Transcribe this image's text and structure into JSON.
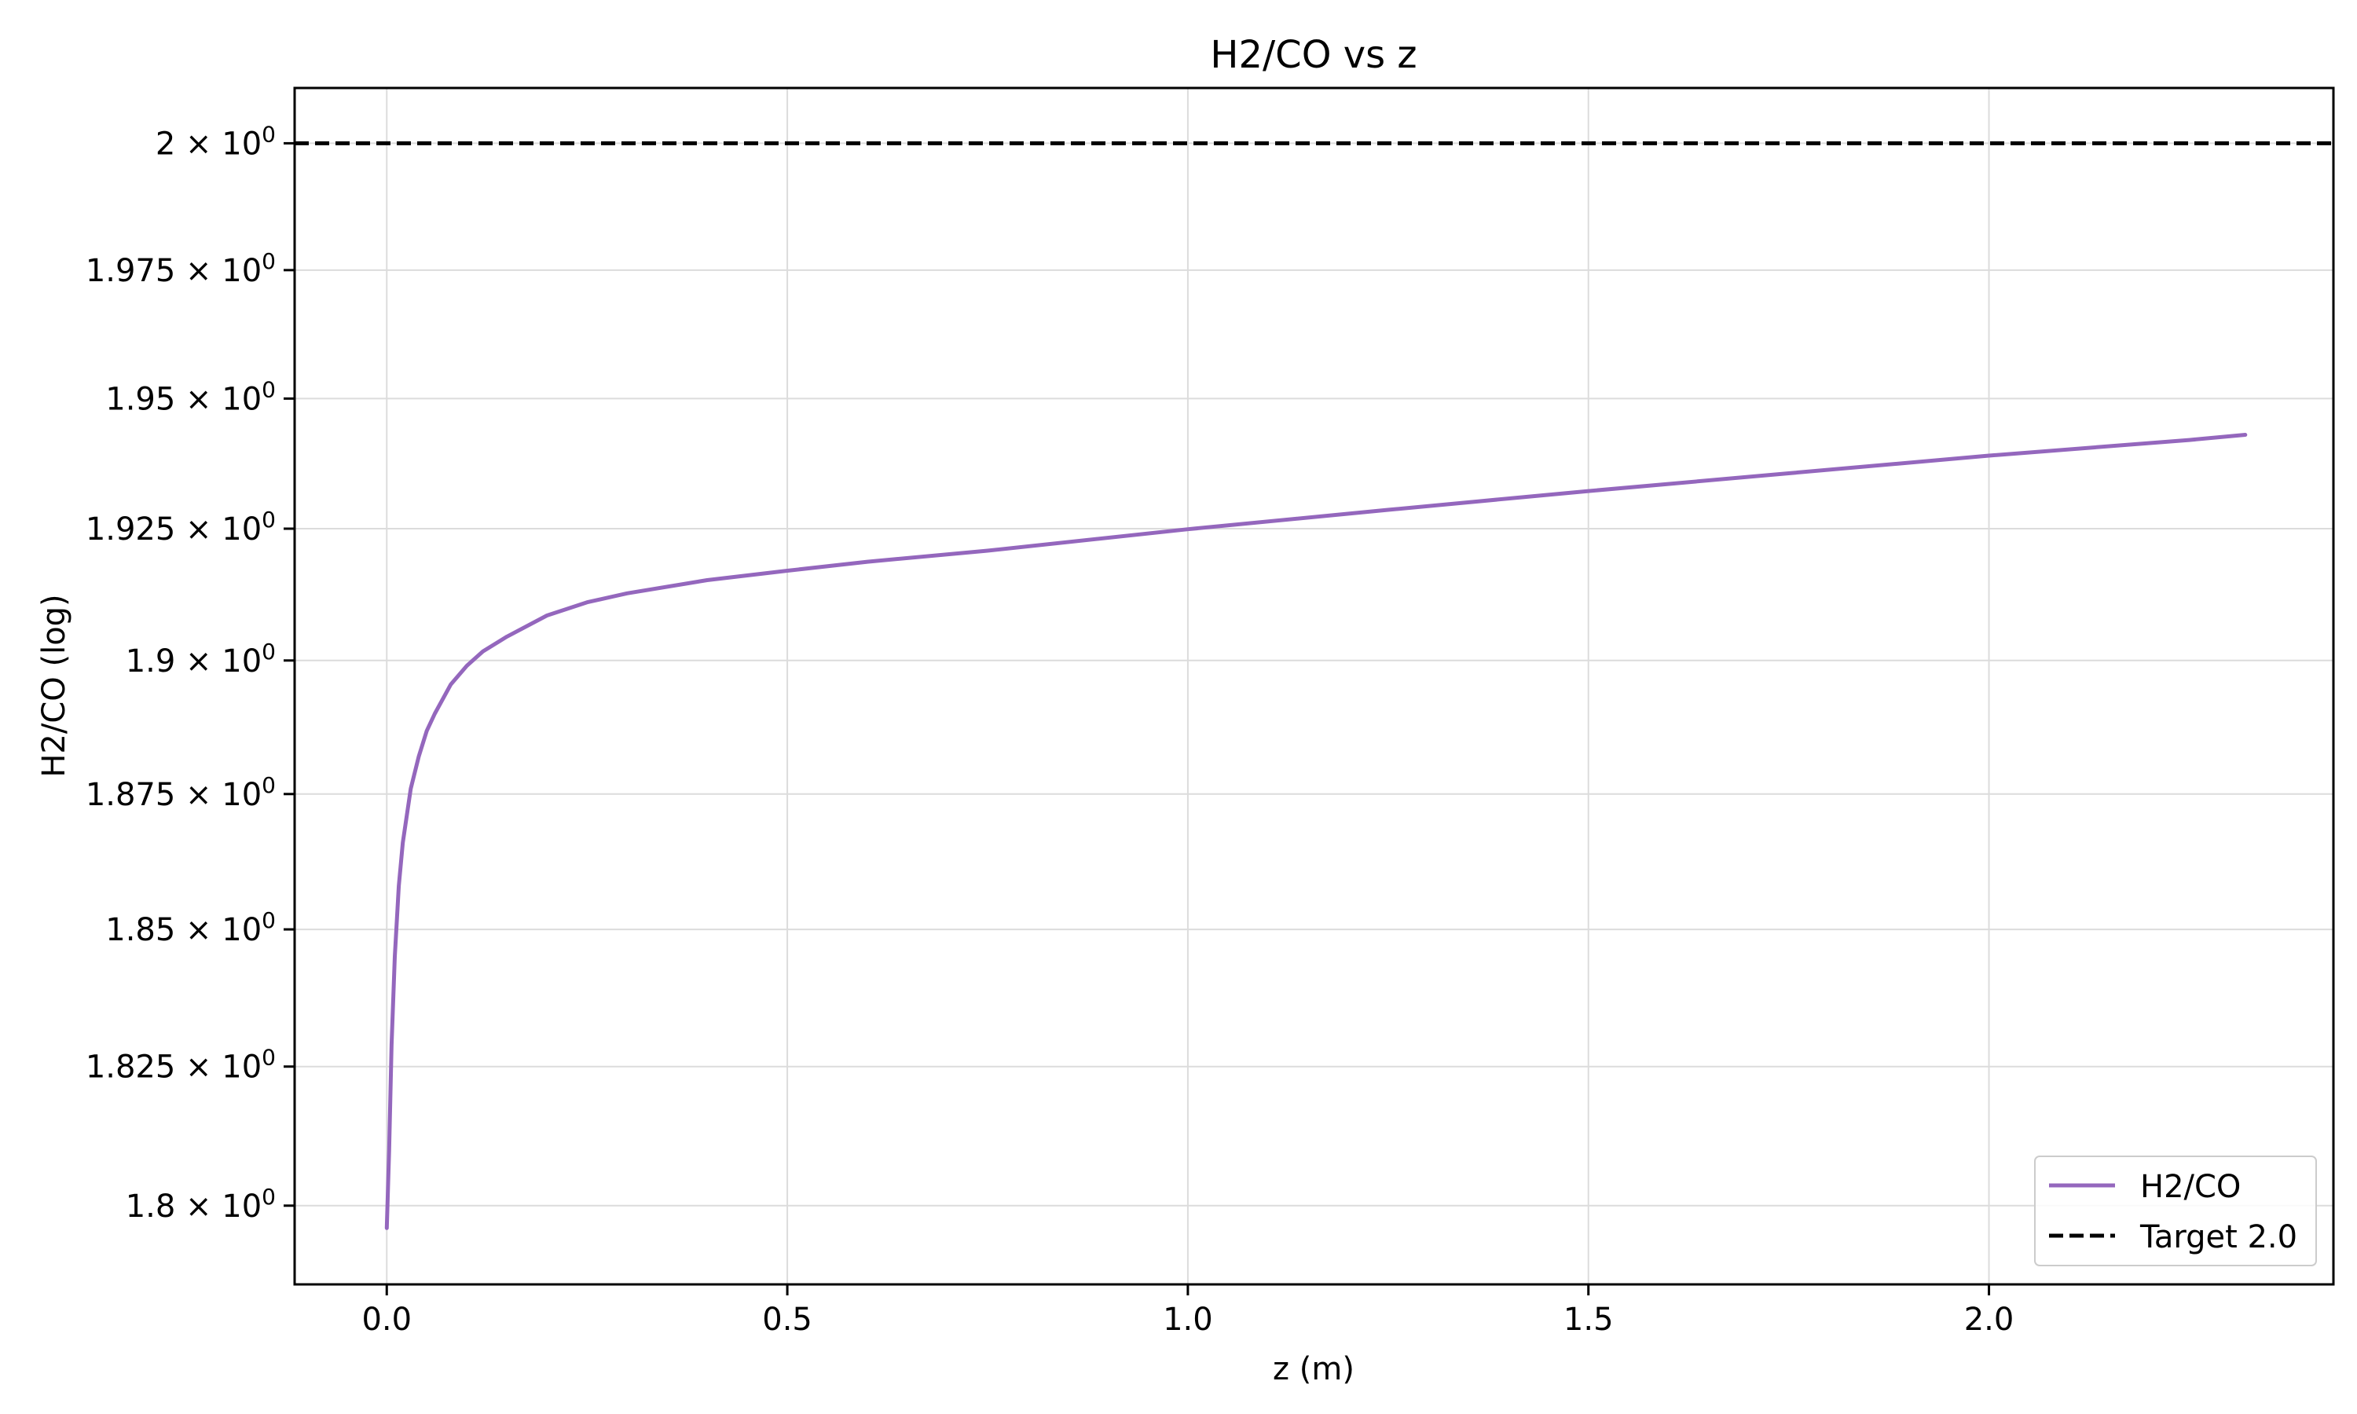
{
  "chart_data": {
    "type": "line",
    "title": "H2/CO vs z",
    "xlabel": "z (m)",
    "ylabel": "H2/CO (log)",
    "xlim": [
      -0.115,
      2.43
    ],
    "ylim": [
      1.786,
      2.011
    ],
    "yscale": "log",
    "grid": true,
    "legend_position": "bottom-right",
    "x_ticks": [
      {
        "value": 0.0,
        "label": "0.0"
      },
      {
        "value": 0.5,
        "label": "0.5"
      },
      {
        "value": 1.0,
        "label": "1.0"
      },
      {
        "value": 1.5,
        "label": "1.5"
      },
      {
        "value": 2.0,
        "label": "2.0"
      }
    ],
    "y_ticks": [
      {
        "value": 1.8,
        "mantissa": "1.8",
        "exponent": "0"
      },
      {
        "value": 1.825,
        "mantissa": "1.825",
        "exponent": "0"
      },
      {
        "value": 1.85,
        "mantissa": "1.85",
        "exponent": "0"
      },
      {
        "value": 1.875,
        "mantissa": "1.875",
        "exponent": "0"
      },
      {
        "value": 1.9,
        "mantissa": "1.9",
        "exponent": "0"
      },
      {
        "value": 1.925,
        "mantissa": "1.925",
        "exponent": "0"
      },
      {
        "value": 1.95,
        "mantissa": "1.95",
        "exponent": "0"
      },
      {
        "value": 1.975,
        "mantissa": "1.975",
        "exponent": "0"
      },
      {
        "value": 2.0,
        "mantissa": "2",
        "exponent": "0"
      }
    ],
    "series": [
      {
        "name": "H2/CO",
        "color": "#9467bd",
        "style": "solid",
        "x": [
          0.0,
          0.003,
          0.006,
          0.01,
          0.015,
          0.02,
          0.03,
          0.04,
          0.05,
          0.06,
          0.08,
          0.1,
          0.12,
          0.15,
          0.2,
          0.25,
          0.3,
          0.4,
          0.5,
          0.6,
          0.75,
          1.0,
          1.25,
          1.5,
          1.75,
          2.0,
          2.25,
          2.32
        ],
        "y": [
          1.796,
          1.81,
          1.829,
          1.845,
          1.858,
          1.866,
          1.876,
          1.882,
          1.8868,
          1.89,
          1.8955,
          1.899,
          1.9017,
          1.9045,
          1.9085,
          1.911,
          1.9127,
          1.9152,
          1.917,
          1.9187,
          1.9208,
          1.9249,
          1.9286,
          1.9322,
          1.9356,
          1.939,
          1.942,
          1.943
        ]
      },
      {
        "name": "Target 2.0",
        "color": "#000000",
        "style": "dashed",
        "y_constant": 2.0
      }
    ]
  }
}
